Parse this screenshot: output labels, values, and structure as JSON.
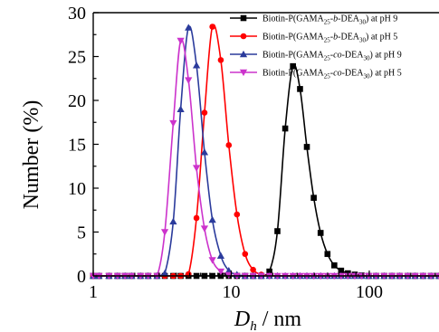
{
  "chart_data": {
    "type": "line",
    "xscale": "log",
    "xlim": [
      1,
      320
    ],
    "ylim": [
      0,
      30
    ],
    "xlabel": "D_h / nm",
    "xlabel_main": "D",
    "xlabel_sub": "h",
    "xlabel_rest": " / nm",
    "ylabel": "Number (%)",
    "xticks": [
      1,
      10,
      100
    ],
    "xtick_labels": [
      "1",
      "10",
      "100"
    ],
    "yticks": [
      0,
      5,
      10,
      15,
      20,
      25,
      30
    ],
    "ytick_labels": [
      "0",
      "5",
      "10",
      "15",
      "20",
      "25",
      "30"
    ],
    "grid": false,
    "legend_position": "top-right",
    "series": [
      {
        "name": "Biotin-P(GAMA25-b-DEA30) at pH 9",
        "legend_parts": [
          "Biotin-P(GAMA",
          "25",
          "-",
          "b",
          "-DEA",
          "30",
          ")  at pH 9"
        ],
        "color": "#000000",
        "marker": "square",
        "x": [
          1.0,
          1.1,
          1.3,
          1.5,
          1.7,
          1.9,
          2.2,
          2.5,
          2.9,
          3.3,
          3.8,
          4.3,
          4.9,
          5.6,
          6.4,
          7.3,
          8.4,
          9.6,
          11.0,
          12.6,
          14.4,
          16.5,
          18.9,
          21.6,
          24.6,
          28.0,
          31.5,
          35.3,
          39.6,
          44.4,
          49.8,
          55.8,
          62.5,
          70.0,
          78.5,
          88.0,
          99.0,
          112,
          128,
          146,
          166,
          190,
          215,
          245,
          280,
          320
        ],
        "values": [
          0,
          0,
          0,
          0,
          0,
          0,
          0,
          0,
          0,
          0,
          0,
          0,
          0,
          0,
          0,
          0,
          0,
          0,
          0,
          0,
          0,
          0,
          0.5,
          5.1,
          16.8,
          23.9,
          21.3,
          14.7,
          8.9,
          4.9,
          2.5,
          1.2,
          0.6,
          0.3,
          0.15,
          0.05,
          0,
          0,
          0,
          0,
          0,
          0,
          0,
          0,
          0,
          0
        ]
      },
      {
        "name": "Biotin-P(GAMA25-b-DEA30) at pH 5",
        "legend_parts": [
          "Biotin-P(GAMA",
          "25",
          "-",
          "b",
          "-DEA",
          "30",
          ")  at pH 5"
        ],
        "color": "#ff0000",
        "marker": "circle",
        "x": [
          1.0,
          1.1,
          1.3,
          1.5,
          1.7,
          1.9,
          2.2,
          2.5,
          2.9,
          3.3,
          3.8,
          4.3,
          4.9,
          5.6,
          6.4,
          7.3,
          8.4,
          9.6,
          11.0,
          12.6,
          14.4,
          16.5,
          18.9,
          21.6,
          24.6,
          28.0,
          31.5,
          35.3,
          39.6,
          44.4,
          49.8,
          55.8,
          62.5,
          70.0,
          78.5,
          88.0,
          99.0,
          112,
          128,
          146,
          166,
          190,
          215,
          245,
          280,
          320
        ],
        "values": [
          0,
          0,
          0,
          0,
          0,
          0,
          0,
          0,
          0,
          0,
          0,
          0,
          0.2,
          6.6,
          18.6,
          28.4,
          24.6,
          14.9,
          7.0,
          2.5,
          0.7,
          0.15,
          0,
          0,
          0,
          0,
          0,
          0,
          0,
          0,
          0,
          0,
          0,
          0,
          0,
          0,
          0,
          0,
          0,
          0,
          0,
          0,
          0,
          0,
          0,
          0
        ]
      },
      {
        "name": "Biotin-P(GAMA25-co-DEA30) at pH 9",
        "legend_parts": [
          "Biotin-P(GAMA",
          "25",
          "-",
          "co",
          "-DEA",
          "30",
          ")  at pH 9"
        ],
        "color": "#2b3b9c",
        "marker": "triangle-up",
        "x": [
          1.0,
          1.1,
          1.3,
          1.5,
          1.7,
          1.9,
          2.2,
          2.5,
          2.9,
          3.3,
          3.8,
          4.3,
          4.9,
          5.6,
          6.4,
          7.3,
          8.4,
          9.6,
          11.0,
          12.6,
          14.4,
          16.5,
          18.9,
          21.6,
          24.6,
          28.0,
          31.5,
          35.3,
          39.6,
          44.4,
          49.8,
          55.8,
          62.5,
          70.0,
          78.5,
          88.0,
          99.0,
          112,
          128,
          146,
          166,
          190,
          215,
          245,
          280,
          320
        ],
        "values": [
          0,
          0,
          0,
          0,
          0,
          0,
          0,
          0,
          0,
          0.3,
          6.2,
          19.0,
          28.3,
          24.0,
          14.1,
          6.4,
          2.3,
          0.6,
          0.15,
          0,
          0,
          0,
          0,
          0,
          0,
          0,
          0,
          0,
          0,
          0,
          0,
          0,
          0,
          0,
          0,
          0,
          0,
          0,
          0,
          0,
          0,
          0,
          0,
          0,
          0,
          0
        ]
      },
      {
        "name": "Biotin-P(GAMA25-co-DEA30) at pH 5",
        "legend_parts": [
          "Biotin-P(GAMA",
          "25",
          "-",
          "co",
          "-DEA",
          "30",
          ")  at pH 5"
        ],
        "color": "#cc33cc",
        "marker": "triangle-down",
        "x": [
          1.0,
          1.1,
          1.3,
          1.5,
          1.7,
          1.9,
          2.2,
          2.5,
          2.9,
          3.3,
          3.8,
          4.3,
          4.9,
          5.6,
          6.4,
          7.3,
          8.4,
          9.6,
          11.0,
          12.6,
          14.4,
          16.5,
          18.9,
          21.6,
          24.6,
          28.0,
          31.5,
          35.3,
          39.6,
          44.4,
          49.8,
          55.8,
          62.5,
          70.0,
          78.5,
          88.0,
          99.0,
          112,
          128,
          146,
          166,
          190,
          215,
          245,
          280,
          320
        ],
        "values": [
          0,
          0,
          0,
          0,
          0,
          0,
          0,
          0,
          0,
          5.0,
          17.4,
          26.8,
          22.3,
          12.3,
          5.4,
          1.8,
          0.5,
          0.1,
          0,
          0,
          0,
          0,
          0,
          0,
          0,
          0,
          0,
          0,
          0,
          0,
          0,
          0,
          0,
          0,
          0,
          0,
          0,
          0,
          0,
          0,
          0,
          0,
          0,
          0,
          0,
          0
        ]
      }
    ]
  }
}
